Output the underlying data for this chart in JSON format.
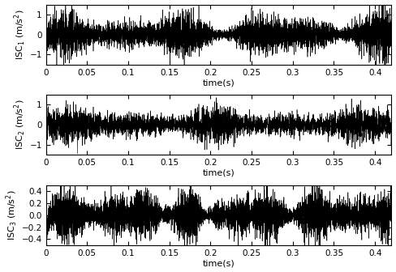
{
  "title": "",
  "xlim": [
    0,
    0.42
  ],
  "xticks": [
    0,
    0.05,
    0.1,
    0.15,
    0.2,
    0.25,
    0.3,
    0.35,
    0.4
  ],
  "panels": [
    {
      "ylabel": "ISC$_1$ (m/s$^2$)",
      "ylim": [
        -1.5,
        1.5
      ],
      "yticks": [
        -1,
        0,
        1
      ],
      "seed": 42
    },
    {
      "ylabel": "ISC$_2$ (m/s$^2$)",
      "ylim": [
        -1.5,
        1.5
      ],
      "yticks": [
        -1,
        0,
        1
      ],
      "seed": 123
    },
    {
      "ylabel": "ISC$_3$ (m/s$^2$)",
      "ylim": [
        -0.5,
        0.5
      ],
      "yticks": [
        -0.4,
        -0.2,
        0,
        0.2,
        0.4
      ],
      "seed": 7
    }
  ],
  "xlabel": "time(s)",
  "fs": 20000,
  "duration": 0.42,
  "line_color": "#000000",
  "background_color": "#ffffff",
  "linewidth": 0.4,
  "figsize": [
    4.88,
    3.36
  ],
  "dpi": 100
}
